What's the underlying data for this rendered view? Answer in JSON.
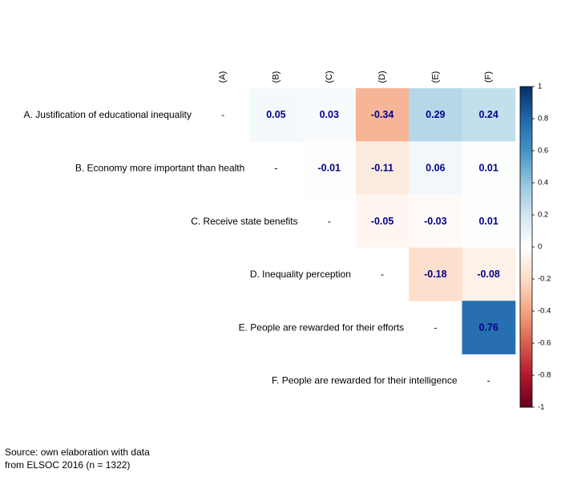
{
  "chart_data": {
    "type": "heatmap",
    "column_labels": [
      "(A)",
      "(B)",
      "(C)",
      "(D)",
      "(E)",
      "(F)"
    ],
    "row_labels": [
      "A. Justification of educational inequality",
      "B. Economy more important than health",
      "C. Receive state benefits",
      "D. Inequality perception",
      "E. People are rewarded for their efforts",
      "F. People are rewarded for their intelligence"
    ],
    "diagonal_text": "-",
    "matrix": [
      [
        null,
        0.05,
        0.03,
        -0.34,
        0.29,
        0.24
      ],
      [
        null,
        null,
        -0.01,
        -0.11,
        0.06,
        0.01
      ],
      [
        null,
        null,
        null,
        -0.05,
        -0.03,
        0.01
      ],
      [
        null,
        null,
        null,
        null,
        -0.18,
        -0.08
      ],
      [
        null,
        null,
        null,
        null,
        null,
        0.76
      ],
      [
        null,
        null,
        null,
        null,
        null,
        null
      ]
    ],
    "value_labels": [
      [
        "-",
        "0.05",
        "0.03",
        "-0.34",
        "0.29",
        "0.24"
      ],
      [
        "",
        "-",
        "-0.01",
        "-0.11",
        "0.06",
        "0.01"
      ],
      [
        "",
        "",
        "-",
        "-0.05",
        "-0.03",
        "0.01"
      ],
      [
        "",
        "",
        "",
        "-",
        "-0.18",
        "-0.08"
      ],
      [
        "",
        "",
        "",
        "",
        "-",
        "0.76"
      ],
      [
        "",
        "",
        "",
        "",
        "",
        "-"
      ]
    ],
    "colorbar": {
      "range": [
        -1,
        1
      ],
      "ticks": [
        1,
        0.8,
        0.6,
        0.4,
        0.2,
        0,
        -0.2,
        -0.4,
        -0.6,
        -0.8,
        -1
      ],
      "tick_labels": [
        "1",
        "0.8",
        "0.6",
        "0.4",
        "0.2",
        "0",
        "-0.2",
        "-0.4",
        "-0.6",
        "-0.8",
        "-1"
      ],
      "colors": {
        "negative_end": "#67001f",
        "neg_mid": "#d6604d",
        "zero": "#ffffff",
        "pos_mid": "#4393c3",
        "positive_end": "#053061"
      }
    },
    "value_label_color": "#00008b"
  },
  "source": {
    "line1": "Source: own elaboration with data",
    "line2": "from ELSOC 2016 (n = 1322)"
  }
}
